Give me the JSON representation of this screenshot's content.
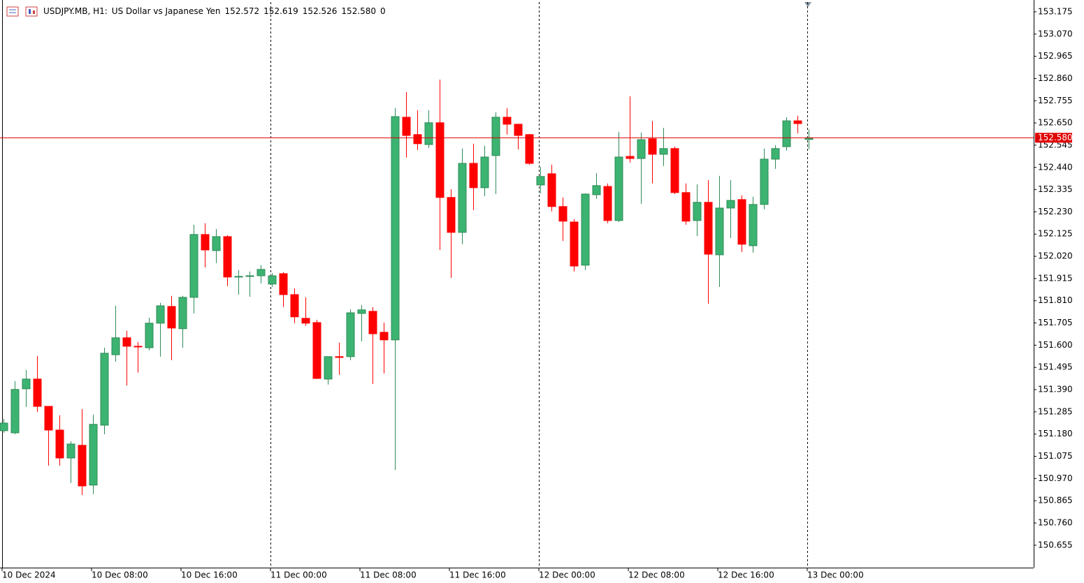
{
  "header": {
    "symbol": "USDJPY.MB, H1:",
    "description": "US Dollar vs Japanese Yen",
    "ohlc": [
      "152.572",
      "152.619",
      "152.526",
      "152.580"
    ],
    "volume": "0"
  },
  "chart_data": {
    "type": "candlestick",
    "up_color": "#3cb371",
    "up_border": "#2e8b57",
    "down_color": "#ff0000",
    "categories": [
      "10 Dec 2024",
      null,
      null,
      null,
      null,
      null,
      null,
      null,
      "10 Dec 08:00",
      null,
      null,
      null,
      null,
      null,
      null,
      null,
      "10 Dec 16:00",
      null,
      null,
      null,
      null,
      null,
      null,
      null,
      "11 Dec 00:00",
      null,
      null,
      null,
      null,
      null,
      null,
      null,
      "11 Dec 08:00",
      null,
      null,
      null,
      null,
      null,
      null,
      null,
      "11 Dec 16:00",
      null,
      null,
      null,
      null,
      null,
      null,
      null,
      "12 Dec 00:00",
      null,
      null,
      null,
      null,
      null,
      null,
      null,
      "12 Dec 08:00",
      null,
      null,
      null,
      null,
      null,
      null,
      null,
      "12 Dec 16:00",
      null,
      null,
      null,
      null,
      null,
      null,
      null,
      "13 Dec 00:00"
    ],
    "open": [
      151.196,
      151.186,
      151.394,
      151.44,
      151.311,
      151.199,
      151.067,
      151.127,
      150.939,
      151.222,
      151.555,
      151.635,
      151.595,
      151.588,
      151.704,
      151.783,
      151.678,
      151.826,
      152.123,
      152.047,
      152.113,
      151.922,
      151.925,
      151.928,
      151.889,
      151.938,
      151.839,
      151.727,
      151.707,
      151.44,
      151.546,
      151.546,
      151.75,
      151.76,
      151.661,
      151.625,
      152.677,
      152.595,
      152.548,
      152.651,
      152.298,
      152.133,
      152.459,
      152.344,
      152.496,
      152.677,
      152.644,
      152.595,
      152.357,
      152.41,
      152.255,
      152.182,
      151.978,
      152.311,
      152.35,
      152.189,
      152.492,
      152.482,
      152.575,
      152.502,
      152.529,
      152.321,
      152.189,
      152.275,
      152.027,
      152.248,
      152.288,
      152.07,
      152.265,
      152.479,
      152.538,
      152.66,
      152.572
    ],
    "high": [
      151.252,
      151.43,
      151.483,
      151.549,
      151.311,
      151.269,
      151.146,
      151.298,
      151.272,
      151.588,
      151.786,
      151.668,
      151.615,
      151.73,
      151.8,
      151.833,
      151.833,
      152.169,
      152.176,
      152.149,
      152.12,
      151.955,
      151.948,
      151.978,
      151.941,
      151.945,
      151.869,
      151.826,
      151.72,
      151.546,
      151.612,
      151.77,
      151.79,
      151.78,
      151.707,
      152.72,
      152.796,
      152.71,
      152.71,
      152.855,
      152.337,
      152.529,
      152.552,
      152.542,
      152.7,
      152.72,
      152.644,
      152.598,
      152.443,
      152.453,
      152.298,
      152.195,
      152.317,
      152.413,
      152.364,
      152.608,
      152.776,
      152.604,
      152.66,
      152.627,
      152.538,
      152.364,
      152.36,
      152.38,
      152.4,
      152.38,
      152.308,
      152.301,
      152.529,
      152.545,
      152.677,
      152.684,
      152.619
    ],
    "low": [
      151.186,
      151.179,
      151.308,
      151.285,
      151.031,
      151.031,
      150.949,
      150.892,
      150.896,
      151.179,
      151.522,
      151.41,
      151.47,
      151.575,
      151.546,
      151.529,
      151.588,
      151.75,
      151.968,
      151.988,
      151.879,
      151.839,
      151.829,
      151.892,
      151.875,
      151.78,
      151.704,
      151.691,
      151.44,
      151.414,
      151.46,
      151.529,
      151.618,
      151.417,
      151.466,
      151.011,
      152.486,
      152.522,
      152.532,
      152.05,
      151.918,
      152.077,
      152.238,
      152.304,
      152.314,
      152.595,
      152.525,
      152.453,
      152.317,
      152.232,
      152.093,
      151.948,
      151.955,
      152.291,
      152.176,
      152.182,
      152.463,
      152.268,
      152.364,
      152.446,
      152.314,
      152.169,
      152.116,
      151.796,
      151.875,
      152.106,
      152.04,
      152.037,
      152.242,
      152.433,
      152.519,
      152.601,
      152.526
    ],
    "close": [
      151.232,
      151.391,
      151.44,
      151.311,
      151.199,
      151.067,
      151.133,
      150.935,
      151.226,
      151.562,
      151.635,
      151.595,
      151.592,
      151.704,
      151.786,
      151.681,
      151.826,
      152.123,
      152.05,
      152.113,
      151.922,
      151.925,
      151.928,
      151.958,
      151.928,
      151.839,
      151.734,
      151.704,
      151.443,
      151.546,
      151.542,
      151.753,
      151.767,
      151.654,
      151.625,
      152.68,
      152.591,
      152.552,
      152.651,
      152.298,
      152.133,
      152.459,
      152.344,
      152.489,
      152.677,
      152.644,
      152.591,
      152.459,
      152.397,
      152.255,
      152.186,
      151.974,
      152.314,
      152.354,
      152.189,
      152.489,
      152.482,
      152.571,
      152.502,
      152.529,
      152.321,
      152.186,
      152.275,
      152.03,
      152.248,
      152.284,
      152.077,
      152.265,
      152.479,
      152.529,
      152.66,
      152.647,
      152.58
    ],
    "ylim": [
      150.549,
      153.221
    ],
    "yticks": [
      153.175,
      {
        "value": 153.07,
        "label": "153.070"
      },
      152.965,
      {
        "value": 152.86,
        "label": "152.860"
      },
      152.755,
      {
        "value": 152.65,
        "label": "152.650"
      },
      152.545,
      {
        "value": 152.44,
        "label": "152.440"
      },
      152.335,
      {
        "value": 152.23,
        "label": "152.230"
      },
      152.125,
      {
        "value": 152.02,
        "label": "152.020"
      },
      151.915,
      {
        "value": 151.81,
        "label": "151.810"
      },
      151.705,
      {
        "value": 151.6,
        "label": "151.600"
      },
      151.495,
      {
        "value": 151.39,
        "label": "151.390"
      },
      151.285,
      {
        "value": 151.18,
        "label": "151.180"
      },
      151.075,
      {
        "value": 150.97,
        "label": "150.970"
      },
      150.865,
      {
        "value": 150.76,
        "label": "150.760"
      },
      150.655
    ],
    "last_price": {
      "value": 152.58,
      "label": "152.580"
    },
    "last_price_color": "#e00000"
  }
}
